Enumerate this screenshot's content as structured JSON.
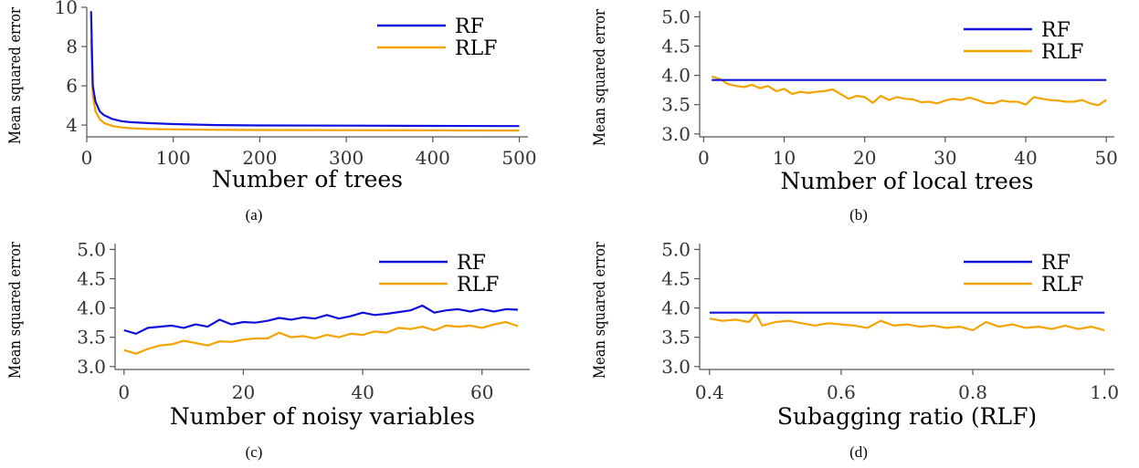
{
  "colors": {
    "rf": "#1010dd",
    "rlf": "#f5a300",
    "axis": "#555555"
  },
  "captions": [
    "(a)",
    "(b)",
    "(c)",
    "(d)"
  ],
  "chart_data": [
    {
      "type": "line",
      "xlabel": "Number of trees",
      "ylabel": "Mean squared error",
      "xlim": [
        0,
        510
      ],
      "ylim": [
        3.4,
        10
      ],
      "xticks": [
        0,
        100,
        200,
        300,
        400,
        500
      ],
      "yticks": [
        4,
        6,
        8,
        10
      ],
      "ytick_labels": [
        "4",
        "6",
        "8",
        "10"
      ],
      "legend": "top-right",
      "series": [
        {
          "name": "RF",
          "x": [
            5,
            7,
            10,
            15,
            20,
            30,
            40,
            50,
            70,
            100,
            150,
            200,
            300,
            400,
            500
          ],
          "y": [
            9.8,
            6.0,
            5.2,
            4.7,
            4.5,
            4.3,
            4.2,
            4.15,
            4.1,
            4.05,
            4.0,
            3.98,
            3.97,
            3.96,
            3.95
          ]
        },
        {
          "name": "RLF",
          "x": [
            5,
            7,
            10,
            15,
            20,
            30,
            40,
            50,
            70,
            100,
            150,
            200,
            300,
            400,
            500
          ],
          "y": [
            8.4,
            5.5,
            4.7,
            4.3,
            4.1,
            3.95,
            3.88,
            3.84,
            3.8,
            3.78,
            3.76,
            3.75,
            3.74,
            3.73,
            3.72
          ]
        }
      ]
    },
    {
      "type": "line",
      "xlabel": "Number of local trees",
      "ylabel": "Mean squared error",
      "xlim": [
        -0.5,
        51
      ],
      "ylim": [
        2.95,
        5.1
      ],
      "xticks": [
        0,
        10,
        20,
        30,
        40,
        50
      ],
      "yticks": [
        3.0,
        3.5,
        4.0,
        4.5,
        5.0
      ],
      "ytick_labels": [
        "3.0",
        "3.5",
        "4.0",
        "4.5",
        "5.0"
      ],
      "legend": "top-right",
      "series": [
        {
          "name": "RF",
          "x": [
            1,
            50
          ],
          "y": [
            3.92,
            3.92
          ]
        },
        {
          "name": "RLF",
          "x": [
            1,
            2,
            3,
            4,
            5,
            6,
            7,
            8,
            9,
            10,
            11,
            12,
            13,
            14,
            15,
            16,
            17,
            18,
            19,
            20,
            21,
            22,
            23,
            24,
            25,
            26,
            27,
            28,
            29,
            30,
            31,
            32,
            33,
            34,
            35,
            36,
            37,
            38,
            39,
            40,
            41,
            42,
            43,
            44,
            45,
            46,
            47,
            48,
            49,
            50
          ],
          "y": [
            3.98,
            3.94,
            3.85,
            3.82,
            3.8,
            3.84,
            3.78,
            3.82,
            3.73,
            3.77,
            3.68,
            3.72,
            3.7,
            3.72,
            3.73,
            3.76,
            3.68,
            3.6,
            3.65,
            3.63,
            3.53,
            3.65,
            3.58,
            3.63,
            3.6,
            3.59,
            3.54,
            3.55,
            3.52,
            3.57,
            3.6,
            3.58,
            3.62,
            3.58,
            3.53,
            3.52,
            3.57,
            3.55,
            3.55,
            3.5,
            3.63,
            3.6,
            3.58,
            3.57,
            3.55,
            3.55,
            3.58,
            3.52,
            3.49,
            3.58
          ]
        }
      ]
    },
    {
      "type": "line",
      "xlabel": "Number of noisy variables",
      "ylabel": "Mean squared error",
      "xlim": [
        -1.5,
        68
      ],
      "ylim": [
        2.95,
        5.1
      ],
      "xticks": [
        0,
        20,
        40,
        60
      ],
      "yticks": [
        3.0,
        3.5,
        4.0,
        4.5,
        5.0
      ],
      "ytick_labels": [
        "3.0",
        "3.5",
        "4.0",
        "4.5",
        "5.0"
      ],
      "legend": "top-right",
      "series": [
        {
          "name": "RF",
          "x": [
            0,
            2,
            4,
            6,
            8,
            10,
            12,
            14,
            16,
            18,
            20,
            22,
            24,
            26,
            28,
            30,
            32,
            34,
            36,
            38,
            40,
            42,
            44,
            46,
            48,
            50,
            52,
            54,
            56,
            58,
            60,
            62,
            64,
            66
          ],
          "y": [
            3.62,
            3.56,
            3.66,
            3.68,
            3.7,
            3.66,
            3.72,
            3.68,
            3.8,
            3.72,
            3.76,
            3.75,
            3.78,
            3.83,
            3.8,
            3.84,
            3.82,
            3.88,
            3.82,
            3.86,
            3.92,
            3.88,
            3.9,
            3.93,
            3.96,
            4.04,
            3.92,
            3.96,
            3.98,
            3.94,
            3.98,
            3.94,
            3.98,
            3.97
          ]
        },
        {
          "name": "RLF",
          "x": [
            0,
            2,
            4,
            6,
            8,
            10,
            12,
            14,
            16,
            18,
            20,
            22,
            24,
            26,
            28,
            30,
            32,
            34,
            36,
            38,
            40,
            42,
            44,
            46,
            48,
            50,
            52,
            54,
            56,
            58,
            60,
            62,
            64,
            66
          ],
          "y": [
            3.28,
            3.22,
            3.3,
            3.36,
            3.38,
            3.44,
            3.4,
            3.36,
            3.43,
            3.42,
            3.46,
            3.48,
            3.48,
            3.58,
            3.5,
            3.52,
            3.48,
            3.54,
            3.5,
            3.56,
            3.54,
            3.6,
            3.58,
            3.66,
            3.64,
            3.68,
            3.62,
            3.7,
            3.68,
            3.7,
            3.66,
            3.72,
            3.76,
            3.69
          ]
        }
      ]
    },
    {
      "type": "line",
      "xlabel": "Subagging ratio (RLF)",
      "ylabel": "Mean squared error",
      "xlim": [
        0.385,
        1.015
      ],
      "ylim": [
        2.95,
        5.1
      ],
      "xticks": [
        0.4,
        0.6,
        0.8,
        1.0
      ],
      "xtick_labels": [
        "0.4",
        "0.6",
        "0.8",
        "1.0"
      ],
      "yticks": [
        3.0,
        3.5,
        4.0,
        4.5,
        5.0
      ],
      "ytick_labels": [
        "3.0",
        "3.5",
        "4.0",
        "4.5",
        "5.0"
      ],
      "legend": "top-right",
      "series": [
        {
          "name": "RF",
          "x": [
            0.4,
            1.0
          ],
          "y": [
            3.92,
            3.92
          ]
        },
        {
          "name": "RLF",
          "x": [
            0.4,
            0.42,
            0.44,
            0.46,
            0.47,
            0.48,
            0.5,
            0.52,
            0.54,
            0.56,
            0.58,
            0.6,
            0.62,
            0.64,
            0.66,
            0.68,
            0.7,
            0.72,
            0.74,
            0.76,
            0.78,
            0.8,
            0.82,
            0.84,
            0.86,
            0.88,
            0.9,
            0.92,
            0.94,
            0.96,
            0.98,
            1.0
          ],
          "y": [
            3.82,
            3.78,
            3.8,
            3.76,
            3.9,
            3.7,
            3.76,
            3.78,
            3.74,
            3.7,
            3.74,
            3.72,
            3.7,
            3.66,
            3.78,
            3.7,
            3.72,
            3.68,
            3.7,
            3.66,
            3.68,
            3.62,
            3.76,
            3.68,
            3.72,
            3.66,
            3.68,
            3.64,
            3.7,
            3.64,
            3.68,
            3.62
          ]
        }
      ]
    }
  ]
}
